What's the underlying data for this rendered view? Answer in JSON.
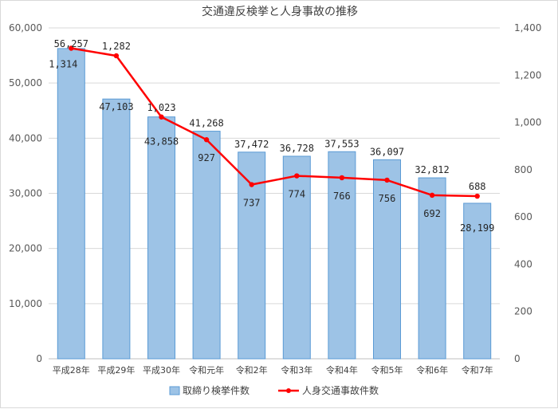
{
  "chart_data": {
    "type": "bar",
    "title": "交通違反検挙と人身事故の推移",
    "categories": [
      "平成28年",
      "平成29年",
      "平成30年",
      "令和元年",
      "令和2年",
      "令和3年",
      "令和4年",
      "令和5年",
      "令和6年",
      "令和7年"
    ],
    "series": [
      {
        "name": "取締り検挙件数",
        "type": "bar",
        "axis": "left",
        "color": "#9dc3e6",
        "values": [
          56257,
          47103,
          43858,
          41268,
          37472,
          36728,
          37553,
          36097,
          32812,
          28199
        ],
        "labels": [
          "56,257",
          "47,103",
          "43,858",
          "41,268",
          "37,472",
          "36,728",
          "37,553",
          "36,097",
          "32,812",
          "28,199"
        ]
      },
      {
        "name": "人身交通事故件数",
        "type": "line",
        "axis": "right",
        "color": "#ff0000",
        "values": [
          1314,
          1282,
          1023,
          927,
          737,
          774,
          766,
          756,
          692,
          688
        ],
        "labels": [
          "1,314",
          "1,282",
          "1,023",
          "927",
          "737",
          "774",
          "766",
          "756",
          "692",
          "688"
        ]
      }
    ],
    "ylim": [
      0,
      60000
    ],
    "y2lim": [
      0,
      1400
    ],
    "yticks": [
      "0",
      "10,000",
      "20,000",
      "30,000",
      "40,000",
      "50,000",
      "60,000"
    ],
    "y2ticks": [
      "0",
      "200",
      "400",
      "600",
      "800",
      "1,000",
      "1,200",
      "1,400"
    ],
    "grid": true,
    "legend": "bottom"
  }
}
